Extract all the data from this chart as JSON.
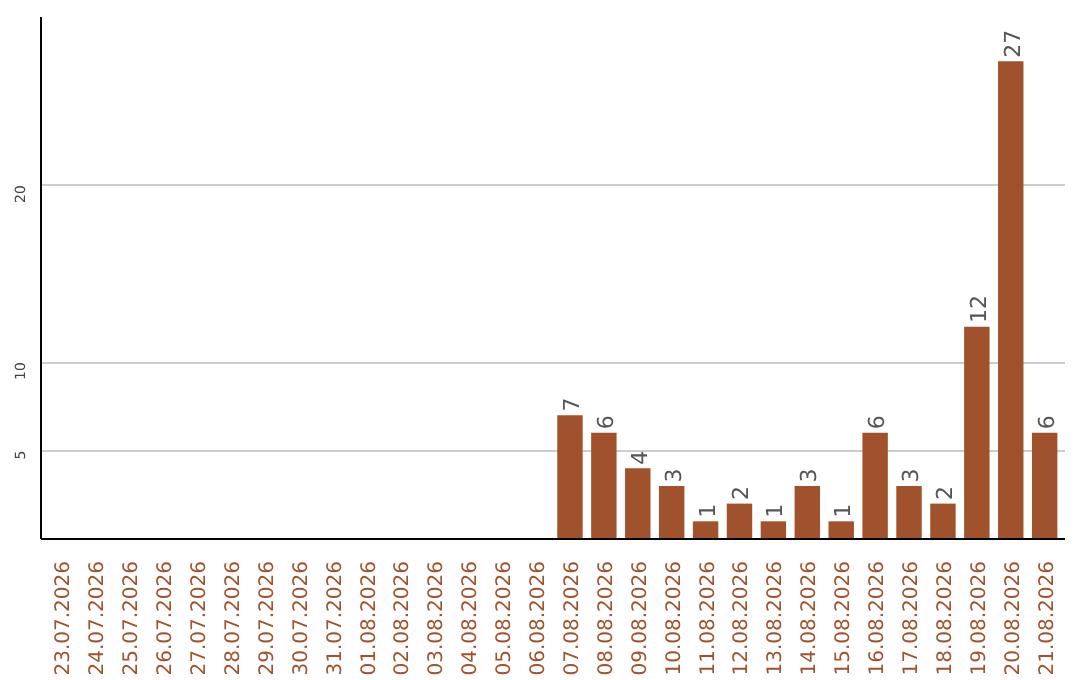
{
  "chart_data": {
    "type": "bar",
    "categories": [
      "23.07.2026",
      "24.07.2026",
      "25.07.2026",
      "26.07.2026",
      "27.07.2026",
      "28.07.2026",
      "29.07.2026",
      "30.07.2026",
      "31.07.2026",
      "01.08.2026",
      "02.08.2026",
      "03.08.2026",
      "04.08.2026",
      "05.08.2026",
      "06.08.2026",
      "07.08.2026",
      "08.08.2026",
      "09.08.2026",
      "10.08.2026",
      "11.08.2026",
      "12.08.2026",
      "13.08.2026",
      "14.08.2026",
      "15.08.2026",
      "16.08.2026",
      "17.08.2026",
      "18.08.2026",
      "19.08.2026",
      "20.08.2026",
      "21.08.2026"
    ],
    "values": [
      0,
      0,
      0,
      0,
      0,
      0,
      0,
      0,
      0,
      0,
      0,
      0,
      0,
      0,
      0,
      7,
      6,
      4,
      3,
      1,
      2,
      1,
      3,
      1,
      6,
      3,
      2,
      12,
      27,
      6
    ],
    "value_labels": [
      null,
      null,
      null,
      null,
      null,
      null,
      null,
      null,
      null,
      null,
      null,
      null,
      null,
      null,
      null,
      "7",
      "6",
      "4",
      "3",
      "1",
      "2",
      "1",
      "3",
      "1",
      "6",
      "3",
      "2",
      "12",
      "27",
      "6"
    ],
    "color": "#a0522d",
    "ylim": [
      0,
      29.5
    ],
    "yticks": [
      5,
      10,
      20
    ],
    "grid": "y"
  }
}
